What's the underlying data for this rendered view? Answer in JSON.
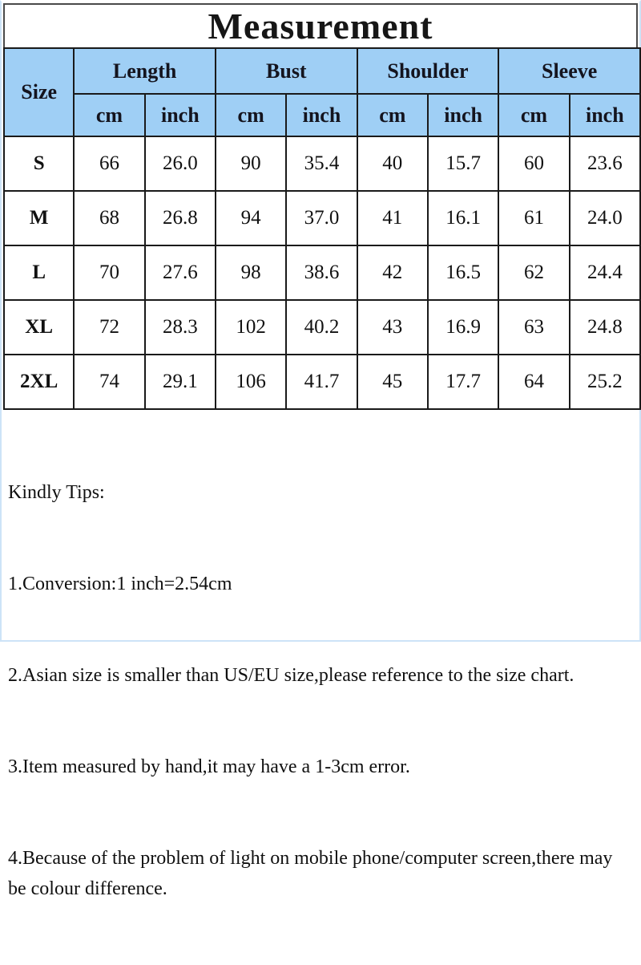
{
  "title": "Measurement",
  "colors": {
    "header_bg": "#9FCFF5",
    "table_border": "#1A1A1A",
    "title_border": "#4A4A4A",
    "outer_frame": "#CDE3F7"
  },
  "table": {
    "size_header": "Size",
    "groups": [
      "Length",
      "Bust",
      "Shoulder",
      "Sleeve"
    ],
    "units_row": [
      "cm",
      "inch",
      "cm",
      "inch",
      "cm",
      "inch",
      "cm",
      "inch"
    ],
    "rows": [
      {
        "size": "S",
        "values": [
          "66",
          "26.0",
          "90",
          "35.4",
          "40",
          "15.7",
          "60",
          "23.6"
        ]
      },
      {
        "size": "M",
        "values": [
          "68",
          "26.8",
          "94",
          "37.0",
          "41",
          "16.1",
          "61",
          "24.0"
        ]
      },
      {
        "size": "L",
        "values": [
          "70",
          "27.6",
          "98",
          "38.6",
          "42",
          "16.5",
          "62",
          "24.4"
        ]
      },
      {
        "size": "XL",
        "values": [
          "72",
          "28.3",
          "102",
          "40.2",
          "43",
          "16.9",
          "63",
          "24.8"
        ]
      },
      {
        "size": "2XL",
        "values": [
          "74",
          "29.1",
          "106",
          "41.7",
          "45",
          "17.7",
          "64",
          "25.2"
        ]
      }
    ]
  },
  "tips": {
    "heading": "Kindly Tips:",
    "items": [
      "1.Conversion:1 inch=2.54cm",
      "2.Asian size is smaller than US/EU size,please reference to the size chart.",
      "3.Item measured by hand,it may have a 1-3cm error.",
      "4.Because of the problem of light on mobile phone/computer screen,there may   be colour difference."
    ]
  }
}
